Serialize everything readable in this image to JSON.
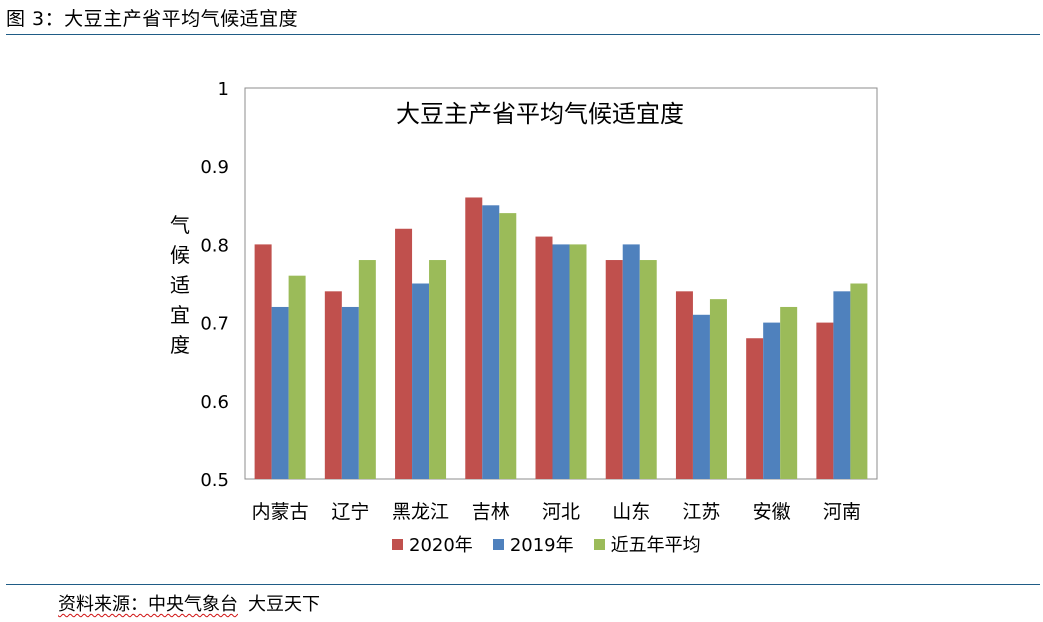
{
  "caption": "图 3：大豆主产省平均气候适宜度",
  "source": {
    "label": "资料来源：中央气象台",
    "rest": "大豆天下"
  },
  "colors": {
    "s2020": "#c0504d",
    "s2019": "#4f81bd",
    "avg5": "#9bbb59",
    "rule": "#1f5c86"
  },
  "chart_data": {
    "type": "bar",
    "title": "大豆主产省平均气候适宜度",
    "xlabel": "",
    "ylabel": "气候适宜度",
    "ylim": [
      0.5,
      1
    ],
    "yticks": [
      "0.5",
      "0.6",
      "0.7",
      "0.8",
      "0.9",
      "1"
    ],
    "grid": false,
    "legend_position": "bottom",
    "categories": [
      "内蒙古",
      "辽宁",
      "黑龙江",
      "吉林",
      "河北",
      "山东",
      "江苏",
      "安徽",
      "河南"
    ],
    "series": [
      {
        "name": "2020年",
        "color": "#c0504d",
        "values": [
          0.8,
          0.74,
          0.82,
          0.86,
          0.81,
          0.78,
          0.74,
          0.68,
          0.7
        ]
      },
      {
        "name": "2019年",
        "color": "#4f81bd",
        "values": [
          0.72,
          0.72,
          0.75,
          0.85,
          0.8,
          0.8,
          0.71,
          0.7,
          0.74
        ]
      },
      {
        "name": "近五年平均",
        "color": "#9bbb59",
        "values": [
          0.76,
          0.78,
          0.78,
          0.84,
          0.8,
          0.78,
          0.73,
          0.72,
          0.75
        ]
      }
    ]
  }
}
